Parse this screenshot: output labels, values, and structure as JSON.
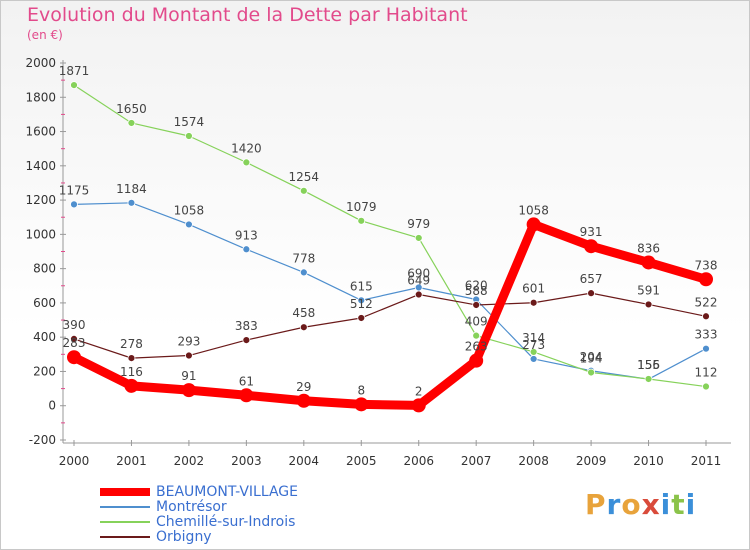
{
  "header": {
    "title": "Evolution du Montant de la Dette par Habitant",
    "subtitle": "(en €)"
  },
  "logo": {
    "text": "Proxiti",
    "colors": [
      "#e8a33b",
      "#3b8fd9",
      "#e8a33b",
      "#d94b3b",
      "#3b8fd9",
      "#8bc34a",
      "#3b8fd9"
    ]
  },
  "chart_data": {
    "type": "line",
    "x": [
      "2000",
      "2001",
      "2002",
      "2003",
      "2004",
      "2005",
      "2006",
      "2007",
      "2008",
      "2009",
      "2010",
      "2011"
    ],
    "ylim": [
      -200,
      2000
    ],
    "yticks": [
      "-200",
      "0",
      "200",
      "400",
      "600",
      "800",
      "1000",
      "1200",
      "1400",
      "1600",
      "1800",
      "2000"
    ],
    "grid": false,
    "legend_position": "bottom-left",
    "series": [
      {
        "name": "BEAUMONT-VILLAGE",
        "color": "#ff0000",
        "values": [
          283,
          116,
          91,
          61,
          29,
          8,
          2,
          263,
          1058,
          931,
          836,
          738
        ],
        "labels": [
          "283",
          "116",
          "91",
          "61",
          "29",
          "8",
          "2",
          "263",
          "1058",
          "931",
          "836",
          "738"
        ]
      },
      {
        "name": "Montrésor",
        "color": "#4f8fce",
        "values": [
          1175,
          1184,
          1058,
          913,
          778,
          615,
          690,
          620,
          273,
          204,
          155,
          333
        ],
        "labels": [
          "1175",
          "1184",
          "1058",
          "913",
          "778",
          "615",
          "690",
          "620",
          "273",
          "204",
          "155",
          "333"
        ]
      },
      {
        "name": "Chemillé-sur-Indrois",
        "color": "#86d25a",
        "values": [
          1871,
          1650,
          1574,
          1420,
          1254,
          1079,
          979,
          409,
          314,
          194,
          156,
          112
        ],
        "labels": [
          "1871",
          "1650",
          "1574",
          "1420",
          "1254",
          "1079",
          "979",
          "409",
          "314",
          "194",
          "156",
          "112"
        ]
      },
      {
        "name": "Orbigny",
        "color": "#6b1a1a",
        "values": [
          390,
          278,
          293,
          383,
          458,
          512,
          649,
          588,
          601,
          657,
          591,
          522
        ],
        "labels": [
          "390",
          "278",
          "293",
          "383",
          "458",
          "512",
          "649",
          "588",
          "601",
          "657",
          "591",
          "522"
        ]
      }
    ]
  }
}
